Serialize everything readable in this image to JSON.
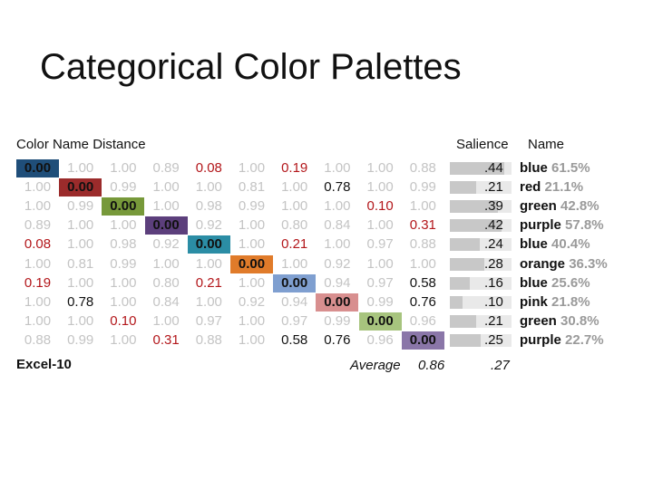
{
  "slide": {
    "title": "Categorical Color Palettes"
  },
  "chart_data": {
    "type": "table",
    "title": "Color Name Distance",
    "salience_header": "Salience",
    "name_header": "Name",
    "palette_label": "Excel-10",
    "average_label": "Average",
    "average_distance": "0.86",
    "average_salience": ".27",
    "colors": [
      "#1f4e79",
      "#9b2b2b",
      "#77993a",
      "#5c3f7c",
      "#2b8da5",
      "#e07b2a",
      "#7f9fd0",
      "#d88f8f",
      "#a7c47e",
      "#8a76a8"
    ],
    "matrix": [
      [
        "0.00",
        "1.00",
        "1.00",
        "0.89",
        "0.08",
        "1.00",
        "0.19",
        "1.00",
        "1.00",
        "0.88"
      ],
      [
        "1.00",
        "0.00",
        "0.99",
        "1.00",
        "1.00",
        "0.81",
        "1.00",
        "0.78",
        "1.00",
        "0.99"
      ],
      [
        "1.00",
        "0.99",
        "0.00",
        "1.00",
        "0.98",
        "0.99",
        "1.00",
        "1.00",
        "0.10",
        "1.00"
      ],
      [
        "0.89",
        "1.00",
        "1.00",
        "0.00",
        "0.92",
        "1.00",
        "0.80",
        "0.84",
        "1.00",
        "0.31"
      ],
      [
        "0.08",
        "1.00",
        "0.98",
        "0.92",
        "0.00",
        "1.00",
        "0.21",
        "1.00",
        "0.97",
        "0.88"
      ],
      [
        "1.00",
        "0.81",
        "0.99",
        "1.00",
        "1.00",
        "0.00",
        "1.00",
        "0.92",
        "1.00",
        "1.00"
      ],
      [
        "0.19",
        "1.00",
        "1.00",
        "0.80",
        "0.21",
        "1.00",
        "0.00",
        "0.94",
        "0.97",
        "0.58"
      ],
      [
        "1.00",
        "0.78",
        "1.00",
        "0.84",
        "1.00",
        "0.92",
        "0.94",
        "0.00",
        "0.99",
        "0.76"
      ],
      [
        "1.00",
        "1.00",
        "0.10",
        "1.00",
        "0.97",
        "1.00",
        "0.97",
        "0.99",
        "0.00",
        "0.96"
      ],
      [
        "0.88",
        "0.99",
        "1.00",
        "0.31",
        "0.88",
        "1.00",
        "0.58",
        "0.76",
        "0.96",
        "0.00"
      ]
    ],
    "salience": [
      ".44",
      ".21",
      ".39",
      ".42",
      ".24",
      ".28",
      ".16",
      ".10",
      ".21",
      ".25"
    ],
    "names": [
      {
        "name": "blue",
        "pct": "61.5%"
      },
      {
        "name": "red",
        "pct": "21.1%"
      },
      {
        "name": "green",
        "pct": "42.8%"
      },
      {
        "name": "purple",
        "pct": "57.8%"
      },
      {
        "name": "blue",
        "pct": "40.4%"
      },
      {
        "name": "orange",
        "pct": "36.3%"
      },
      {
        "name": "blue",
        "pct": "25.6%"
      },
      {
        "name": "pink",
        "pct": "21.8%"
      },
      {
        "name": "green",
        "pct": "30.8%"
      },
      {
        "name": "purple",
        "pct": "22.7%"
      }
    ]
  }
}
